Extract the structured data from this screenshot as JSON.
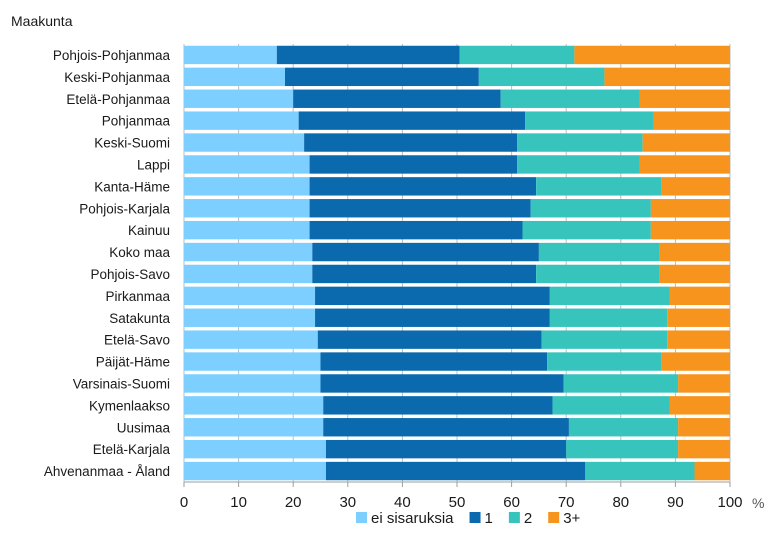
{
  "chart_data": {
    "type": "bar",
    "orientation": "horizontal",
    "stacked": true,
    "normalized": true,
    "ylabel": "Maakunta",
    "x_unit": "%",
    "xlim": [
      0,
      100
    ],
    "x_ticks": [
      "0",
      "10",
      "20",
      "30",
      "40",
      "50",
      "60",
      "70",
      "80",
      "90",
      "100"
    ],
    "grid": "vertical",
    "legend_position": "bottom",
    "categories": [
      "Pohjois-Pohjanmaa",
      "Keski-Pohjanmaa",
      "Etelä-Pohjanmaa",
      "Pohjanmaa",
      "Keski-Suomi",
      "Lappi",
      "Kanta-Häme",
      "Pohjois-Karjala",
      "Kainuu",
      "Koko maa",
      "Pohjois-Savo",
      "Pirkanmaa",
      "Satakunta",
      "Etelä-Savo",
      "Päijät-Häme",
      "Varsinais-Suomi",
      "Kymenlaakso",
      "Uusimaa",
      "Etelä-Karjala",
      "Ahvenanmaa - Åland"
    ],
    "series": [
      {
        "name": "ei sisaruksia",
        "color": "#7ccfff",
        "values": [
          17,
          18.5,
          20,
          21,
          22,
          23,
          23,
          23,
          23,
          23.5,
          23.5,
          24,
          24,
          24.5,
          25,
          25,
          25.5,
          25.5,
          26,
          26
        ]
      },
      {
        "name": "1",
        "color": "#0b6aad",
        "values": [
          33.5,
          35.5,
          38,
          41.5,
          39,
          38,
          41.5,
          40.5,
          39,
          41.5,
          41,
          43,
          43,
          41,
          41.5,
          44.5,
          42,
          45,
          44,
          47.5
        ]
      },
      {
        "name": "2",
        "color": "#36c4bd",
        "values": [
          21,
          23,
          25.5,
          23.5,
          23,
          22.5,
          23,
          22,
          23.5,
          22,
          22.5,
          22,
          21.5,
          23,
          21,
          21,
          21.5,
          20,
          20.5,
          20
        ]
      },
      {
        "name": "3+",
        "color": "#f7941d",
        "values": [
          28.5,
          23,
          16.5,
          14,
          16,
          16.5,
          12.5,
          14.5,
          14.5,
          13,
          13,
          11,
          11.5,
          11.5,
          12.5,
          9.5,
          11,
          9.5,
          9.5,
          6.5
        ]
      }
    ]
  }
}
